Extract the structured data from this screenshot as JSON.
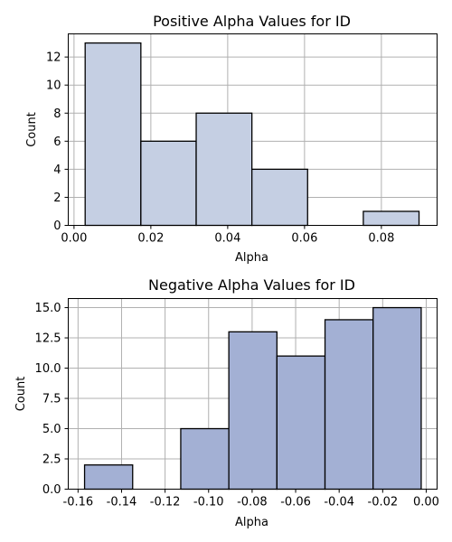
{
  "chart_data": [
    {
      "type": "bar",
      "title": "Positive Alpha Values for ID",
      "xlabel": "Alpha",
      "ylabel": "Count",
      "xlim": [
        -0.0015,
        0.0945
      ],
      "ylim": [
        0,
        13.65
      ],
      "xticks": [
        "0.00",
        "0.02",
        "0.04",
        "0.06",
        "0.08"
      ],
      "xtick_values": [
        0.0,
        0.02,
        0.04,
        0.06,
        0.08
      ],
      "yticks": [
        "0",
        "2",
        "4",
        "6",
        "8",
        "10",
        "12"
      ],
      "ytick_values": [
        0,
        2,
        4,
        6,
        8,
        10,
        12
      ],
      "grid": true,
      "bins": [
        {
          "x0": 0.0029,
          "x1": 0.0174,
          "count": 13
        },
        {
          "x0": 0.0174,
          "x1": 0.0318,
          "count": 6
        },
        {
          "x0": 0.0318,
          "x1": 0.0463,
          "count": 8
        },
        {
          "x0": 0.0463,
          "x1": 0.0608,
          "count": 4
        },
        {
          "x0": 0.0608,
          "x1": 0.0753,
          "count": 0
        },
        {
          "x0": 0.0753,
          "x1": 0.0898,
          "count": 1
        }
      ],
      "color": "#c5cfe3"
    },
    {
      "type": "bar",
      "title": "Negative Alpha Values for ID",
      "xlabel": "Alpha",
      "ylabel": "Count",
      "xlim": [
        -0.1645,
        0.005
      ],
      "ylim": [
        0,
        15.75
      ],
      "xticks": [
        "-0.16",
        "-0.14",
        "-0.12",
        "-0.10",
        "-0.08",
        "-0.06",
        "-0.04",
        "-0.02",
        "0.00"
      ],
      "xtick_values": [
        -0.16,
        -0.14,
        -0.12,
        -0.1,
        -0.08,
        -0.06,
        -0.04,
        -0.02,
        0.0
      ],
      "yticks": [
        "0.0",
        "2.5",
        "5.0",
        "7.5",
        "10.0",
        "12.5",
        "15.0"
      ],
      "ytick_values": [
        0,
        2.5,
        5,
        7.5,
        10,
        12.5,
        15
      ],
      "grid": true,
      "bins": [
        {
          "x0": -0.157,
          "x1": -0.1349,
          "count": 2
        },
        {
          "x0": -0.1349,
          "x1": -0.1128,
          "count": 0
        },
        {
          "x0": -0.1128,
          "x1": -0.0907,
          "count": 5
        },
        {
          "x0": -0.0907,
          "x1": -0.0686,
          "count": 13
        },
        {
          "x0": -0.0686,
          "x1": -0.0465,
          "count": 11
        },
        {
          "x0": -0.0465,
          "x1": -0.0244,
          "count": 14
        },
        {
          "x0": -0.0244,
          "x1": -0.0023,
          "count": 15
        }
      ],
      "color": "#a3b0d4"
    }
  ]
}
